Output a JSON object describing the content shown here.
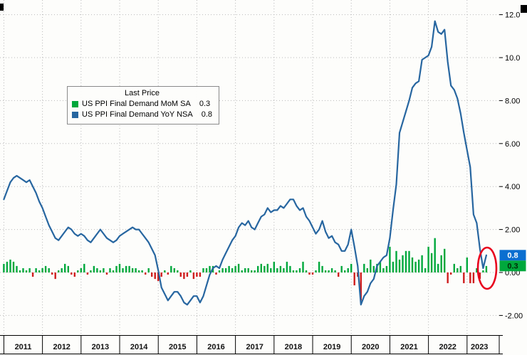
{
  "chart": {
    "legend": {
      "title": "Last Price",
      "items": [
        {
          "label": "US PPI Final Demand MoM SA",
          "value": "0.3",
          "color": "#00a83c"
        },
        {
          "label": "US PPI Final Demand YoY NSA",
          "value": "0.8",
          "color": "#2766a0"
        }
      ]
    },
    "badges": [
      {
        "value": "0.8",
        "bg": "#0b6fd0",
        "fg": "#ffffff"
      },
      {
        "value": "0.3",
        "bg": "#00a83c",
        "fg": "#002b08"
      }
    ]
  },
  "chart_data": {
    "type": "combo",
    "x": {
      "start_year": 2011,
      "start_month": 1,
      "end_year": 2023,
      "end_month": 7,
      "frequency": "monthly"
    },
    "x_tick_years": [
      2011,
      2012,
      2013,
      2014,
      2015,
      2016,
      2017,
      2018,
      2019,
      2020,
      2021,
      2022,
      2023
    ],
    "y_ticks": [
      -2,
      0,
      2,
      4,
      6,
      8,
      10,
      12
    ],
    "y_tick_labels": [
      "-2.00",
      "0.00",
      "2.00",
      "4.00",
      "6.00",
      "8.00",
      "10.0",
      "12.0"
    ],
    "ylim": [
      -2.9,
      12.7
    ],
    "grid": "dotted",
    "legend_position": "upper-left",
    "annotation": {
      "type": "ellipse",
      "color": "#e8001c"
    },
    "series": [
      {
        "name": "US PPI Final Demand MoM SA",
        "type": "bar",
        "color": "#00a83c",
        "negative_color": "#cf1d1d",
        "last": 0.3,
        "values": [
          0.4,
          0.5,
          0.6,
          0.5,
          0.3,
          0.1,
          0.2,
          0.1,
          0.2,
          -0.2,
          0.2,
          0.1,
          0.2,
          0.3,
          0.2,
          -0.1,
          -0.3,
          0.1,
          0.2,
          0.4,
          0.3,
          -0.1,
          -0.2,
          0.1,
          0.2,
          0.4,
          -0.1,
          0.1,
          0.3,
          0.2,
          0.1,
          0.2,
          -0.1,
          0.2,
          0.1,
          0.3,
          0.4,
          0.2,
          0.3,
          0.3,
          0.2,
          0.2,
          0.1,
          0.1,
          -0.1,
          0.2,
          -0.2,
          -0.3,
          -0.4,
          -0.2,
          0.1,
          -0.1,
          0.3,
          0.2,
          0.1,
          -0.2,
          -0.3,
          -0.2,
          0.1,
          -0.3,
          -0.2,
          -0.2,
          0.2,
          0.2,
          0.3,
          0.3,
          -0.1,
          0.1,
          0.2,
          0.2,
          0.3,
          0.2,
          0.3,
          0.4,
          0.1,
          0.2,
          0.2,
          0.1,
          0.1,
          0.3,
          0.4,
          0.3,
          0.4,
          0.2,
          0.5,
          0.2,
          0.3,
          0.2,
          0.5,
          0.3,
          0.1,
          0.1,
          0.2,
          0.5,
          0.1,
          -0.1,
          -0.1,
          0.1,
          0.5,
          0.3,
          0.1,
          0.1,
          0.2,
          0.1,
          -0.2,
          0.3,
          0.1,
          0.2,
          0.4,
          -0.6,
          -0.2,
          -1.3,
          0.4,
          0.2,
          0.6,
          0.3,
          0.4,
          0.5,
          0.2,
          0.3,
          1.2,
          0.5,
          1.0,
          0.6,
          0.8,
          1.0,
          1.0,
          0.7,
          0.5,
          0.6,
          0.8,
          0.2,
          1.2,
          0.9,
          1.6,
          0.4,
          0.8,
          1.1,
          -0.5,
          -0.1,
          0.4,
          0.2,
          0.3,
          -0.5,
          0.7,
          -0.5,
          -0.5,
          0.2,
          -0.3,
          0.1,
          0.3
        ]
      },
      {
        "name": "US PPI Final Demand YoY NSA",
        "type": "line",
        "color": "#2766a0",
        "last": 0.8,
        "values": [
          3.4,
          3.8,
          4.2,
          4.4,
          4.5,
          4.4,
          4.3,
          4.2,
          4.3,
          4.0,
          3.7,
          3.3,
          3.0,
          2.6,
          2.2,
          1.9,
          1.6,
          1.5,
          1.7,
          1.9,
          2.1,
          2.0,
          1.8,
          1.7,
          1.8,
          1.7,
          1.5,
          1.4,
          1.6,
          1.8,
          2.0,
          1.8,
          1.6,
          1.5,
          1.4,
          1.5,
          1.7,
          1.8,
          1.9,
          2.0,
          2.1,
          2.0,
          2.0,
          1.8,
          1.6,
          1.4,
          1.1,
          0.8,
          0.1,
          -0.7,
          -1.0,
          -1.3,
          -1.1,
          -0.9,
          -0.9,
          -1.1,
          -1.4,
          -1.5,
          -1.3,
          -1.1,
          -1.1,
          -1.4,
          -1.1,
          -0.6,
          -0.1,
          0.2,
          0.3,
          0.2,
          0.6,
          0.9,
          1.2,
          1.5,
          1.7,
          2.1,
          2.3,
          2.2,
          2.4,
          2.1,
          2.0,
          2.3,
          2.6,
          2.7,
          3.0,
          2.8,
          2.9,
          2.9,
          3.1,
          3.0,
          3.2,
          3.4,
          3.4,
          3.1,
          2.9,
          3.0,
          2.6,
          2.4,
          2.1,
          1.8,
          2.0,
          2.4,
          1.9,
          1.6,
          1.7,
          1.4,
          1.3,
          1.0,
          1.0,
          1.3,
          2.0,
          1.2,
          0.3,
          -1.5,
          -1.1,
          -0.9,
          -0.5,
          -0.3,
          0.3,
          0.5,
          0.7,
          0.8,
          1.6,
          2.9,
          4.1,
          6.5,
          7.0,
          7.5,
          8.0,
          8.6,
          8.8,
          8.9,
          9.9,
          10.0,
          10.1,
          10.5,
          11.7,
          11.2,
          11.1,
          11.3,
          9.8,
          8.7,
          8.5,
          8.1,
          7.4,
          6.5,
          5.7,
          4.9,
          2.7,
          2.3,
          1.1,
          0.2,
          0.8
        ]
      }
    ]
  }
}
